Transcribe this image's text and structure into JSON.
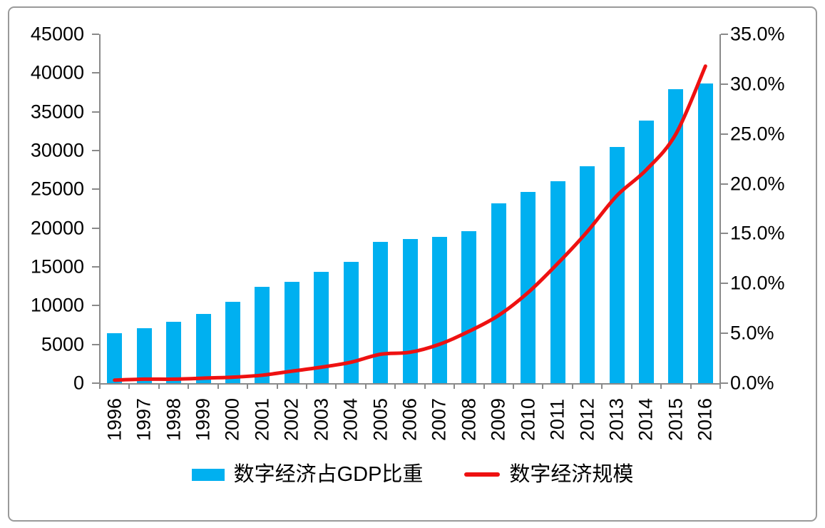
{
  "chart_data": {
    "type": "bar+line combo",
    "categories": [
      "1996",
      "1997",
      "1998",
      "1999",
      "2000",
      "2001",
      "2002",
      "2003",
      "2004",
      "2005",
      "2006",
      "2007",
      "2008",
      "2009",
      "2010",
      "2011",
      "2012",
      "2013",
      "2014",
      "2015",
      "2016"
    ],
    "series": [
      {
        "name": "数字经济占GDP比重",
        "type": "bar",
        "axis": "left",
        "color": "#00b0f0",
        "values": [
          6400,
          7100,
          7950,
          8900,
          10500,
          12400,
          13050,
          14400,
          15650,
          18250,
          18600,
          18900,
          19600,
          23200,
          24700,
          26050,
          28000,
          30450,
          33900,
          37900,
          38650
        ]
      },
      {
        "name": "数字经济规模",
        "type": "line",
        "axis": "right",
        "color": "#ee1111",
        "values": [
          0.3,
          0.4,
          0.4,
          0.5,
          0.6,
          0.8,
          1.2,
          1.6,
          2.1,
          2.9,
          3.1,
          3.9,
          5.2,
          6.8,
          9.1,
          12.0,
          15.2,
          18.8,
          21.4,
          25.0,
          31.8
        ]
      }
    ],
    "left_axis": {
      "min": 0,
      "max": 45000,
      "step": 5000,
      "tick_labels": [
        "45000",
        "40000",
        "35000",
        "30000",
        "25000",
        "20000",
        "15000",
        "10000",
        "5000",
        "0"
      ]
    },
    "right_axis": {
      "min": 0,
      "max": 35,
      "step": 5,
      "tick_labels": [
        "35.0%",
        "30.0%",
        "25.0%",
        "20.0%",
        "15.0%",
        "10.0%",
        "5.0%",
        "0.0%"
      ]
    },
    "legend": {
      "bar_label": "数字经济占GDP比重",
      "line_label": "数字经济规模"
    },
    "title": "",
    "grid": "off",
    "legend_position": "bottom-center",
    "axis_color": "#8a8a8a"
  }
}
